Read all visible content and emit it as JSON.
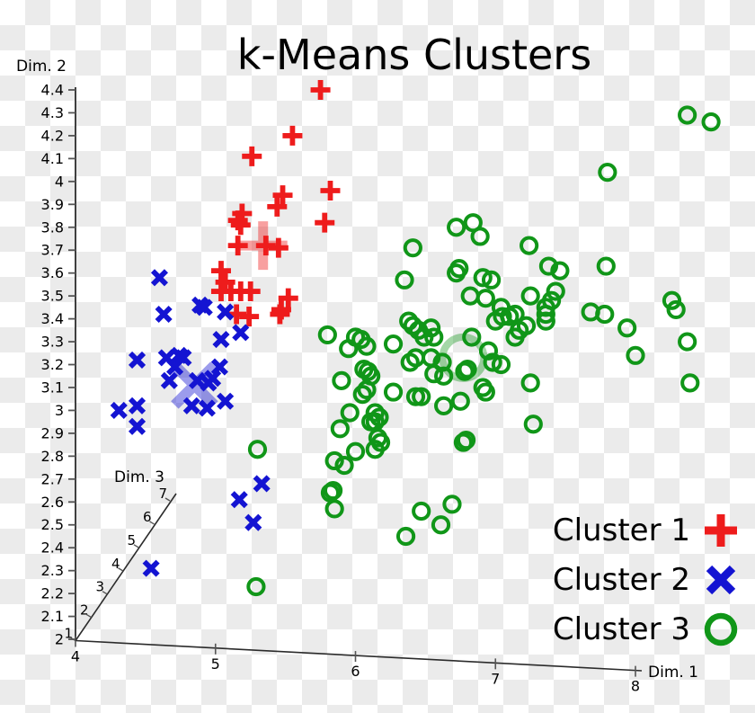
{
  "title": "k-Means Clusters",
  "axes": {
    "x": {
      "label": "Dim. 1",
      "ticks": [
        4,
        5,
        6,
        7,
        8
      ],
      "range": [
        4,
        8
      ]
    },
    "y": {
      "label": "Dim. 2",
      "ticks": [
        4.4,
        4.3,
        4.2,
        4.1,
        4,
        3.9,
        3.8,
        3.7,
        3.6,
        3.5,
        3.4,
        3.3,
        3.2,
        3.1,
        3,
        2.9,
        2.8,
        2.7,
        2.6,
        2.5,
        2.4,
        2.3,
        2.2,
        2.1,
        2
      ],
      "range": [
        2,
        4.4
      ]
    },
    "z": {
      "label": "Dim. 3",
      "ticks": [
        1,
        2,
        3,
        4,
        5,
        6,
        7
      ],
      "range": [
        1,
        7
      ]
    }
  },
  "legend": {
    "items": [
      {
        "label": "Cluster 1",
        "marker": "plus",
        "color": "#ee1c1c"
      },
      {
        "label": "Cluster 2",
        "marker": "x",
        "color": "#1414d2"
      },
      {
        "label": "Cluster 3",
        "marker": "circle",
        "color": "#109618"
      }
    ]
  },
  "chart_data": {
    "type": "scatter",
    "title": "k-Means Clusters",
    "xlabel": "Dim. 1",
    "ylabel": "Dim. 2",
    "zlabel": "Dim. 3",
    "xlim": [
      4,
      8
    ],
    "ylim": [
      2,
      4.4
    ],
    "zlim": [
      1,
      7
    ],
    "grid": false,
    "legend_position": "bottom-right",
    "note": "3D scatterplot projected to 2D; point coordinates are approximate projected (Dim.1, Dim.2) values read from the axes",
    "series": [
      {
        "name": "Cluster 1",
        "marker": "plus",
        "color": "#ee1c1c",
        "points": [
          [
            5.75,
            4.4
          ],
          [
            5.55,
            4.2
          ],
          [
            5.26,
            4.11
          ],
          [
            5.82,
            3.96
          ],
          [
            5.48,
            3.94
          ],
          [
            5.44,
            3.89
          ],
          [
            5.19,
            3.86
          ],
          [
            5.16,
            3.83
          ],
          [
            5.18,
            3.81
          ],
          [
            5.78,
            3.82
          ],
          [
            5.16,
            3.72
          ],
          [
            5.36,
            3.72
          ],
          [
            5.45,
            3.71
          ],
          [
            5.04,
            3.61
          ],
          [
            5.07,
            3.56
          ],
          [
            5.04,
            3.52
          ],
          [
            5.11,
            3.52
          ],
          [
            5.18,
            3.52
          ],
          [
            5.25,
            3.52
          ],
          [
            5.15,
            3.42
          ],
          [
            5.24,
            3.41
          ],
          [
            5.46,
            3.42
          ],
          [
            5.52,
            3.49
          ],
          [
            5.47,
            3.44
          ]
        ]
      },
      {
        "name": "Cluster 2",
        "marker": "x",
        "color": "#1414d2",
        "points": [
          [
            4.6,
            3.58
          ],
          [
            4.63,
            3.42
          ],
          [
            4.89,
            3.46
          ],
          [
            4.92,
            3.45
          ],
          [
            5.07,
            3.43
          ],
          [
            5.18,
            3.34
          ],
          [
            5.04,
            3.31
          ],
          [
            4.44,
            3.22
          ],
          [
            4.65,
            3.23
          ],
          [
            4.74,
            3.24
          ],
          [
            4.77,
            3.23
          ],
          [
            4.71,
            3.19
          ],
          [
            4.67,
            3.13
          ],
          [
            4.87,
            3.13
          ],
          [
            4.98,
            3.14
          ],
          [
            5.03,
            3.19
          ],
          [
            4.95,
            3.12
          ],
          [
            4.31,
            3.0
          ],
          [
            4.44,
            3.02
          ],
          [
            4.83,
            3.02
          ],
          [
            4.94,
            3.01
          ],
          [
            5.07,
            3.04
          ],
          [
            4.44,
            2.93
          ],
          [
            5.33,
            2.68
          ],
          [
            5.17,
            2.61
          ],
          [
            5.27,
            2.51
          ],
          [
            4.54,
            2.31
          ]
        ]
      },
      {
        "name": "Cluster 3",
        "marker": "circle",
        "color": "#109618",
        "points": [
          [
            6.72,
            3.8
          ],
          [
            6.84,
            3.82
          ],
          [
            6.89,
            3.76
          ],
          [
            6.41,
            3.71
          ],
          [
            7.24,
            3.72
          ],
          [
            6.74,
            3.62
          ],
          [
            6.91,
            3.58
          ],
          [
            6.97,
            3.57
          ],
          [
            6.35,
            3.57
          ],
          [
            8.37,
            4.29
          ],
          [
            8.54,
            4.26
          ],
          [
            7.8,
            4.04
          ],
          [
            7.38,
            3.63
          ],
          [
            7.46,
            3.61
          ],
          [
            7.79,
            3.63
          ],
          [
            6.72,
            3.6
          ],
          [
            6.82,
            3.5
          ],
          [
            6.93,
            3.49
          ],
          [
            7.04,
            3.45
          ],
          [
            7.0,
            3.39
          ],
          [
            7.05,
            3.41
          ],
          [
            7.1,
            3.41
          ],
          [
            7.14,
            3.42
          ],
          [
            7.25,
            3.5
          ],
          [
            7.17,
            3.35
          ],
          [
            7.22,
            3.37
          ],
          [
            7.14,
            3.32
          ],
          [
            6.38,
            3.39
          ],
          [
            6.41,
            3.37
          ],
          [
            6.45,
            3.35
          ],
          [
            6.49,
            3.32
          ],
          [
            6.54,
            3.36
          ],
          [
            6.56,
            3.32
          ],
          [
            5.8,
            3.33
          ],
          [
            6.0,
            3.32
          ],
          [
            6.04,
            3.31
          ],
          [
            5.95,
            3.27
          ],
          [
            6.08,
            3.28
          ],
          [
            6.27,
            3.29
          ],
          [
            6.83,
            3.32
          ],
          [
            6.95,
            3.26
          ],
          [
            7.04,
            3.2
          ],
          [
            6.98,
            3.21
          ],
          [
            6.78,
            3.17
          ],
          [
            6.8,
            3.18
          ],
          [
            6.43,
            3.23
          ],
          [
            6.54,
            3.23
          ],
          [
            6.62,
            3.21
          ],
          [
            6.39,
            3.21
          ],
          [
            6.56,
            3.16
          ],
          [
            6.63,
            3.15
          ],
          [
            5.9,
            3.13
          ],
          [
            6.06,
            3.18
          ],
          [
            6.09,
            3.17
          ],
          [
            6.11,
            3.15
          ],
          [
            6.05,
            3.07
          ],
          [
            6.08,
            3.09
          ],
          [
            6.27,
            3.08
          ],
          [
            6.43,
            3.06
          ],
          [
            6.47,
            3.06
          ],
          [
            6.91,
            3.1
          ],
          [
            6.93,
            3.08
          ],
          [
            7.25,
            3.12
          ],
          [
            6.63,
            3.02
          ],
          [
            6.75,
            3.04
          ],
          [
            5.96,
            2.99
          ],
          [
            6.14,
            2.99
          ],
          [
            6.17,
            2.97
          ],
          [
            5.89,
            2.92
          ],
          [
            6.11,
            2.95
          ],
          [
            6.14,
            2.95
          ],
          [
            6.16,
            2.88
          ],
          [
            6.18,
            2.86
          ],
          [
            6.77,
            2.86
          ],
          [
            6.79,
            2.87
          ],
          [
            6.0,
            2.82
          ],
          [
            5.85,
            2.78
          ],
          [
            5.92,
            2.76
          ],
          [
            7.27,
            2.94
          ],
          [
            7.43,
            3.52
          ],
          [
            7.4,
            3.48
          ],
          [
            7.36,
            3.45
          ],
          [
            7.36,
            3.42
          ],
          [
            7.36,
            3.39
          ],
          [
            7.68,
            3.43
          ],
          [
            7.78,
            3.42
          ],
          [
            7.94,
            3.36
          ],
          [
            8.26,
            3.48
          ],
          [
            8.29,
            3.44
          ],
          [
            8.0,
            3.24
          ],
          [
            8.37,
            3.3
          ],
          [
            8.39,
            3.12
          ],
          [
            5.3,
            2.83
          ],
          [
            5.29,
            2.23
          ],
          [
            5.82,
            2.64
          ],
          [
            5.84,
            2.65
          ],
          [
            5.85,
            2.57
          ],
          [
            6.47,
            2.56
          ],
          [
            6.69,
            2.59
          ],
          [
            6.61,
            2.5
          ],
          [
            6.36,
            2.45
          ],
          [
            6.14,
            2.83
          ]
        ]
      }
    ],
    "centers": [
      {
        "series": "Cluster 1",
        "x": 5.34,
        "y": 3.72
      },
      {
        "series": "Cluster 2",
        "x": 4.85,
        "y": 3.11
      },
      {
        "series": "Cluster 3",
        "x": 6.77,
        "y": 3.23
      }
    ]
  }
}
